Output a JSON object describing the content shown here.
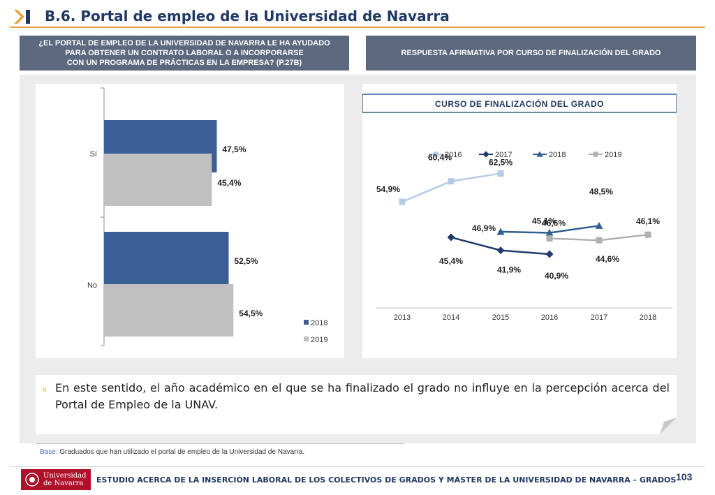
{
  "header": {
    "title": "B.6. Portal de empleo de la Universidad de Navarra"
  },
  "left_header": {
    "line1": "¿EL PORTAL DE EMPLEO DE LA UNIVERSIDAD DE NAVARRA LE HA AYUDADO",
    "line2": "PARA OBTENER UN CONTRATO LABORAL O A INCORPORARSE",
    "line3": "CON UN PROGRAMA DE PRÁCTICAS EN LA EMPRESA? (P.27B)"
  },
  "right_header": {
    "text": "RESPUESTA AFIRMATIVA POR CURSO DE FINALIZACIÓN DEL GRADO"
  },
  "chart_data": [
    {
      "type": "bar",
      "orientation": "horizontal",
      "categories": [
        "Sí",
        "No"
      ],
      "series": [
        {
          "name": "2018",
          "values": [
            47.5,
            52.5
          ],
          "labels": [
            "47,5%",
            "52,5%"
          ],
          "color": "#3a5f96"
        },
        {
          "name": "2019",
          "values": [
            45.4,
            54.5
          ],
          "labels": [
            "45,4%",
            "54,5%"
          ],
          "color": "#c0c0c0"
        }
      ],
      "legend": [
        "2018",
        "2019"
      ],
      "legend_position": "bottom-right"
    },
    {
      "type": "line",
      "title": "CURSO DE FINALIZACIÓN DEL GRADO",
      "categories": [
        "2013",
        "2014",
        "2015",
        "2016",
        "2017",
        "2018"
      ],
      "series": [
        {
          "name": "2016",
          "color": "#b4cbe6",
          "marker": "square",
          "points": [
            [
              0,
              54.9
            ],
            [
              1,
              60.4
            ],
            [
              2,
              62.5
            ]
          ],
          "labels": [
            "54,9%",
            "60,4%",
            "62,5%"
          ]
        },
        {
          "name": "2017",
          "color": "#1f3b6b",
          "marker": "diamond",
          "points": [
            [
              1,
              45.4
            ],
            [
              2,
              41.9
            ],
            [
              3,
              40.9
            ]
          ],
          "labels": [
            "45,4%",
            "41,9%",
            "40,9%"
          ]
        },
        {
          "name": "2018",
          "color": "#2e5e92",
          "marker": "triangle",
          "points": [
            [
              2,
              46.9
            ],
            [
              3,
              46.6
            ],
            [
              4,
              48.5
            ]
          ],
          "labels": [
            "46,9%",
            "46,6%",
            "48,5%"
          ]
        },
        {
          "name": "2019",
          "color": "#b0b0b0",
          "marker": "square",
          "points": [
            [
              3,
              45.1
            ],
            [
              4,
              44.6
            ],
            [
              5,
              46.1
            ]
          ],
          "labels": [
            "45,1%",
            "44,6%",
            "46,1%"
          ]
        }
      ],
      "legend_position": "top"
    }
  ],
  "note": {
    "text": "En este sentido, el año académico en el que se ha finalizado el grado no influye en la percepción acerca del Portal de Empleo de la UNAV."
  },
  "base": {
    "label": "Base:",
    "text": " Graduados que han utilizado el portal de empleo de la Universidad de Navarra."
  },
  "footer": {
    "logo_line1": "Universidad",
    "logo_line2": "de Navarra",
    "text": "ESTUDIO ACERCA DE LA INSERCIÓN LABORAL DE LOS COLECTIVOS DE GRADOS Y MÁSTER DE LA UNIVERSIDAD DE NAVARRA – GRADOS",
    "page_number": "103"
  },
  "colors": {
    "accent": "#e8a33d",
    "title": "#1f3864",
    "header_bg": "#5b687e"
  }
}
